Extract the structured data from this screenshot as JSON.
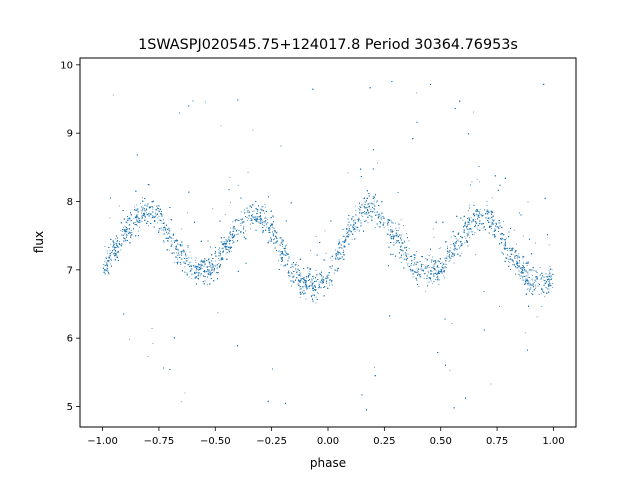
{
  "chart_data": {
    "type": "scatter",
    "title": "1SWASPJ020545.75+124017.8 Period 30364.76953s",
    "xlabel": "phase",
    "ylabel": "flux",
    "xlim": [
      -1.1,
      1.1
    ],
    "ylim": [
      4.7,
      10.1
    ],
    "x_ticks": [
      -1.0,
      -0.75,
      -0.5,
      -0.25,
      0.0,
      0.25,
      0.5,
      0.75,
      1.0
    ],
    "x_tick_labels": [
      "−1.00",
      "−0.75",
      "−0.50",
      "−0.25",
      "0.00",
      "0.25",
      "0.50",
      "0.75",
      "1.00"
    ],
    "y_ticks": [
      5,
      6,
      7,
      8,
      9,
      10
    ],
    "y_tick_labels": [
      "5",
      "6",
      "7",
      "8",
      "9",
      "10"
    ],
    "grid": false,
    "legend": "none",
    "point_color": "#1f77b4",
    "series": [
      {
        "x": [
          -1.0,
          -0.95,
          -0.9,
          -0.85,
          -0.8,
          -0.75,
          -0.7,
          -0.65,
          -0.6,
          -0.55,
          -0.5,
          -0.45,
          -0.4,
          -0.35,
          -0.3,
          -0.25,
          -0.2,
          -0.15,
          -0.1,
          -0.05,
          0.0,
          0.05,
          0.1,
          0.15,
          0.2,
          0.25,
          0.3,
          0.35,
          0.4,
          0.45,
          0.5,
          0.55,
          0.6,
          0.65,
          0.7,
          0.75,
          0.8,
          0.85,
          0.9,
          0.95,
          1.0
        ],
        "y": [
          7.05,
          7.3,
          7.55,
          7.75,
          7.88,
          7.75,
          7.45,
          7.2,
          7.0,
          6.98,
          7.1,
          7.35,
          7.6,
          7.8,
          7.78,
          7.55,
          7.2,
          6.95,
          6.8,
          6.75,
          6.9,
          7.25,
          7.6,
          7.85,
          7.9,
          7.7,
          7.45,
          7.2,
          7.02,
          7.0,
          7.05,
          7.3,
          7.55,
          7.75,
          7.8,
          7.6,
          7.3,
          7.05,
          6.85,
          6.8,
          6.9
        ],
        "scatter": 0.15,
        "outlier_range": [
          4.9,
          9.8
        ],
        "points_per_knot": 230
      }
    ]
  }
}
